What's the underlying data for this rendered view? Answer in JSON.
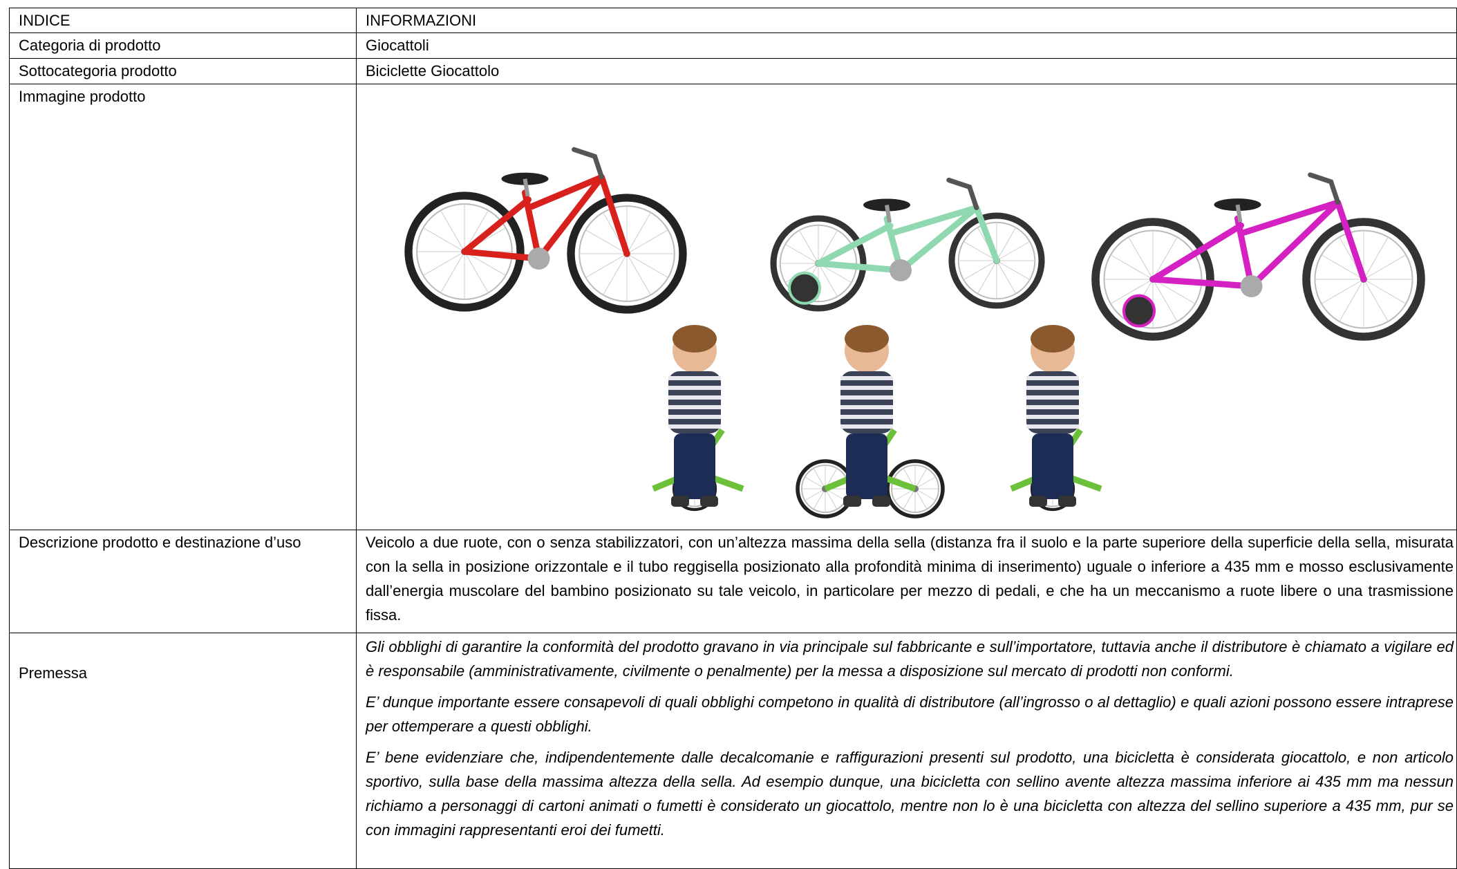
{
  "table": {
    "header": [
      "INDICE",
      "INFORMAZIONI"
    ],
    "rows": [
      [
        "Categoria di prodotto",
        "Giocattoli"
      ],
      [
        "Sottocategoria prodotto",
        "Biciclette Giocattolo"
      ],
      [
        "Immagine prodotto"
      ],
      [
        "Descrizione prodotto e destinazione d’uso",
        "Veicolo a due ruote, con o senza stabilizzatori, con un’altezza massima della sella (distanza fra il suolo e la parte superiore della superficie della sella, misurata con la sella in posizione orizzontale e il tubo reggisella posizionato alla profondità minima di inserimento) uguale o inferiore a 435 mm e mosso esclusivamente dall’energia muscolare del bambino posizionato su tale veicolo, in particolare per mezzo di pedali, e che ha un meccanismo a ruote libere o una trasmissione fissa."
      ],
      [
        "Premessa",
        [
          "Gli obblighi di garantire la conformità del prodotto gravano in via principale sul fabbricante e sull’importatore, tuttavia anche il distributore è chiamato a vigilare ed è responsabile (amministrativamente, civilmente o penalmente) per la messa a disposizione sul mercato di prodotti non conformi.",
          "E’ dunque importante essere consapevoli di quali obblighi competono in qualità di distributore (all’ingrosso o al dettaglio) e quali azioni possono essere intraprese per ottemperare a questi obblighi.",
          "E’ bene evidenziare che, indipendentemente dalle decalcomanie e raffigurazioni presenti sul prodotto, una bicicletta è considerata giocattolo, e non articolo sportivo, sulla base della massima altezza della sella. Ad esempio dunque, una bicicletta con sellino avente altezza massima inferiore ai 435 mm ma nessun richiamo a personaggi di cartoni animati o fumetti è considerato un giocattolo, mentre non lo è una bicicletta con altezza del sellino superiore a 435 mm, pur se con immagini rappresentanti eroi dei fumetti."
        ]
      ]
    ]
  }
}
